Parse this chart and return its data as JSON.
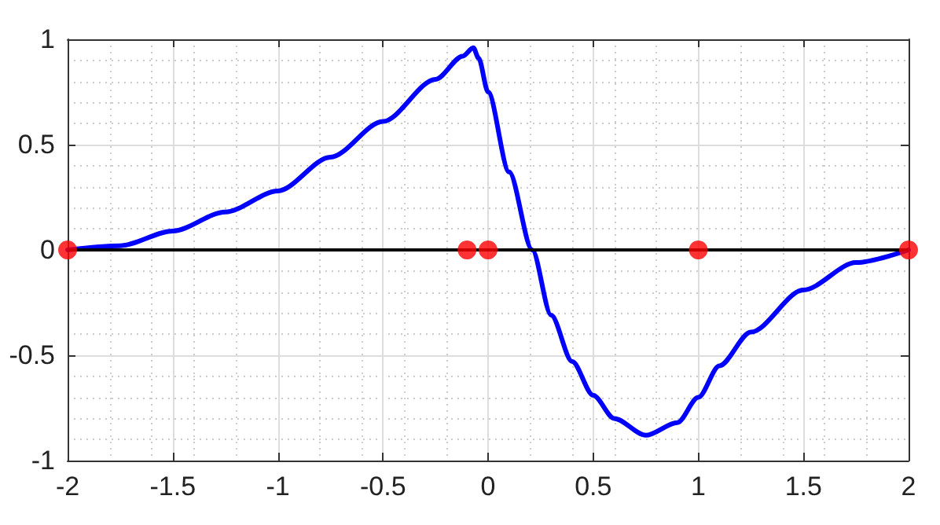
{
  "chart_data": {
    "type": "line",
    "xlim": [
      -2,
      2
    ],
    "xticks": [
      -2,
      -1.5,
      -1,
      -0.5,
      0,
      0.5,
      1,
      1.5,
      2
    ],
    "ylim": [
      -1,
      1
    ],
    "yticks": [
      -1,
      -0.5,
      0,
      0.5,
      1
    ],
    "grid": true,
    "ref_lines": [
      {
        "axis": "y",
        "value": 0,
        "color": "#000000",
        "line_style": "solid"
      }
    ],
    "series": [
      {
        "color": "#0000ff",
        "marker": "none",
        "line_style": "solid",
        "x": [
          -2,
          -1.75,
          -1.5,
          -1.25,
          -1,
          -0.75,
          -0.5,
          -0.25,
          -0.12,
          -0.07,
          -0.045,
          0,
          0.1,
          0.21,
          0.3,
          0.4,
          0.5,
          0.6,
          0.75,
          0.9,
          1,
          1.1,
          1.25,
          1.5,
          1.75,
          2
        ],
        "values": [
          0,
          0.02,
          0.09,
          0.18,
          0.28,
          0.44,
          0.61,
          0.81,
          0.92,
          0.96,
          0.91,
          0.75,
          0.37,
          0,
          -0.31,
          -0.53,
          -0.69,
          -0.8,
          -0.88,
          -0.82,
          -0.7,
          -0.55,
          -0.39,
          -0.19,
          -0.06,
          0
        ]
      },
      {
        "type": "scatter",
        "color": "#ff0000",
        "marker": "circle",
        "x": [
          -2,
          -0.1,
          0,
          1,
          2
        ],
        "values": [
          0,
          0,
          0,
          0,
          0
        ]
      }
    ]
  }
}
